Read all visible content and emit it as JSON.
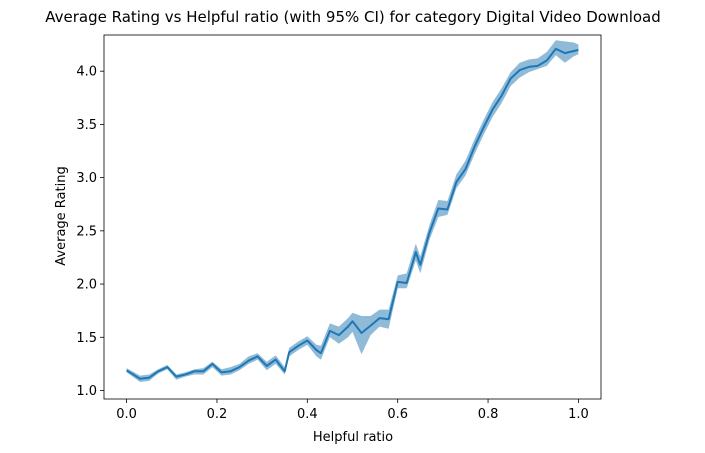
{
  "chart_data": {
    "type": "line",
    "title": "Average Rating vs Helpful ratio (with 95% CI) for category Digital Video Download",
    "xlabel": "Helpful ratio",
    "ylabel": "Average Rating",
    "xlim": [
      -0.05,
      1.05
    ],
    "ylim": [
      0.92,
      4.34
    ],
    "xticks": [
      0.0,
      0.2,
      0.4,
      0.6,
      0.8,
      1.0
    ],
    "xtick_labels": [
      "0.0",
      "0.2",
      "0.4",
      "0.6",
      "0.8",
      "1.0"
    ],
    "yticks": [
      1.0,
      1.5,
      2.0,
      2.5,
      3.0,
      3.5,
      4.0
    ],
    "ytick_labels": [
      "1.0",
      "1.5",
      "2.0",
      "2.5",
      "3.0",
      "3.5",
      "4.0"
    ],
    "grid": false,
    "legend": false,
    "line_color": "#1f77b4",
    "band_color": "#1f77b4",
    "x": [
      0.0,
      0.03,
      0.05,
      0.07,
      0.09,
      0.11,
      0.13,
      0.15,
      0.17,
      0.19,
      0.21,
      0.23,
      0.25,
      0.27,
      0.29,
      0.31,
      0.33,
      0.35,
      0.36,
      0.38,
      0.4,
      0.42,
      0.43,
      0.45,
      0.47,
      0.49,
      0.5,
      0.52,
      0.54,
      0.56,
      0.58,
      0.6,
      0.62,
      0.64,
      0.65,
      0.67,
      0.69,
      0.71,
      0.73,
      0.75,
      0.77,
      0.79,
      0.81,
      0.83,
      0.85,
      0.87,
      0.89,
      0.91,
      0.93,
      0.95,
      0.97,
      0.99,
      1.0
    ],
    "y": [
      1.19,
      1.11,
      1.12,
      1.18,
      1.22,
      1.13,
      1.15,
      1.18,
      1.18,
      1.25,
      1.17,
      1.18,
      1.22,
      1.28,
      1.32,
      1.23,
      1.29,
      1.18,
      1.36,
      1.42,
      1.47,
      1.38,
      1.35,
      1.56,
      1.52,
      1.6,
      1.65,
      1.54,
      1.61,
      1.68,
      1.67,
      2.02,
      2.01,
      2.3,
      2.18,
      2.48,
      2.71,
      2.7,
      2.96,
      3.08,
      3.29,
      3.47,
      3.64,
      3.77,
      3.93,
      4.01,
      4.04,
      4.05,
      4.1,
      4.21,
      4.17,
      4.19,
      4.2
    ],
    "ci_lower": [
      1.17,
      1.08,
      1.09,
      1.16,
      1.2,
      1.1,
      1.13,
      1.15,
      1.15,
      1.22,
      1.14,
      1.15,
      1.19,
      1.25,
      1.29,
      1.19,
      1.25,
      1.15,
      1.32,
      1.38,
      1.43,
      1.32,
      1.29,
      1.5,
      1.44,
      1.5,
      1.55,
      1.34,
      1.52,
      1.6,
      1.58,
      1.96,
      1.96,
      2.22,
      2.1,
      2.41,
      2.63,
      2.65,
      2.9,
      3.02,
      3.22,
      3.4,
      3.57,
      3.7,
      3.86,
      3.94,
      3.99,
      4.02,
      4.05,
      4.15,
      4.08,
      4.14,
      4.16
    ],
    "ci_upper": [
      1.21,
      1.14,
      1.15,
      1.2,
      1.24,
      1.15,
      1.17,
      1.2,
      1.21,
      1.27,
      1.2,
      1.22,
      1.25,
      1.32,
      1.35,
      1.27,
      1.33,
      1.22,
      1.4,
      1.46,
      1.51,
      1.43,
      1.42,
      1.63,
      1.6,
      1.68,
      1.73,
      1.7,
      1.7,
      1.76,
      1.76,
      2.08,
      2.1,
      2.38,
      2.26,
      2.55,
      2.79,
      2.78,
      3.03,
      3.16,
      3.36,
      3.54,
      3.71,
      3.84,
      3.99,
      4.08,
      4.11,
      4.12,
      4.18,
      4.29,
      4.28,
      4.27,
      4.25
    ]
  }
}
